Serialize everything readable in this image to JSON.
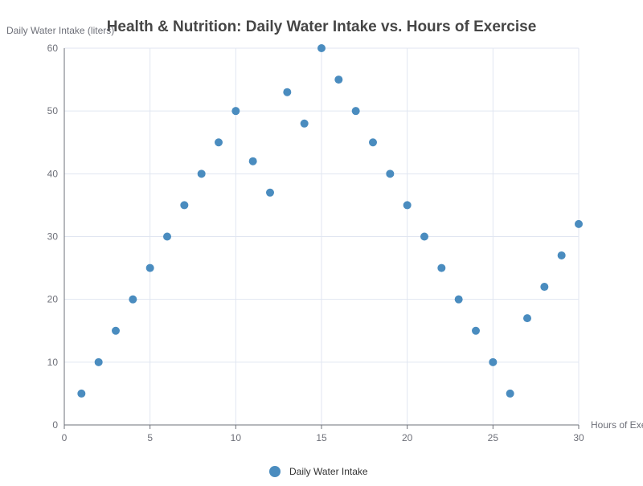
{
  "chart_data": {
    "type": "scatter",
    "title": "Health & Nutrition: Daily Water Intake vs. Hours of Exercise",
    "xlabel": "Hours of Exercise",
    "ylabel": "Daily Water Intake (liters)",
    "xlim": [
      0,
      30
    ],
    "ylim": [
      0,
      60
    ],
    "xticks": [
      0,
      5,
      10,
      15,
      20,
      25,
      30
    ],
    "yticks": [
      0,
      10,
      20,
      30,
      40,
      50,
      60
    ],
    "grid": true,
    "legend_position": "bottom-center",
    "series": [
      {
        "name": "Daily Water Intake",
        "color": "#4a8cbf",
        "points": [
          [
            1,
            5
          ],
          [
            2,
            10
          ],
          [
            3,
            15
          ],
          [
            4,
            20
          ],
          [
            5,
            25
          ],
          [
            6,
            30
          ],
          [
            7,
            35
          ],
          [
            8,
            40
          ],
          [
            9,
            45
          ],
          [
            10,
            50
          ],
          [
            11,
            42
          ],
          [
            12,
            37
          ],
          [
            13,
            53
          ],
          [
            14,
            48
          ],
          [
            15,
            60
          ],
          [
            16,
            55
          ],
          [
            17,
            50
          ],
          [
            18,
            45
          ],
          [
            19,
            40
          ],
          [
            20,
            35
          ],
          [
            21,
            30
          ],
          [
            22,
            25
          ],
          [
            23,
            20
          ],
          [
            24,
            15
          ],
          [
            25,
            10
          ],
          [
            26,
            5
          ],
          [
            27,
            17
          ],
          [
            28,
            22
          ],
          [
            29,
            27
          ],
          [
            30,
            32
          ]
        ]
      }
    ]
  }
}
